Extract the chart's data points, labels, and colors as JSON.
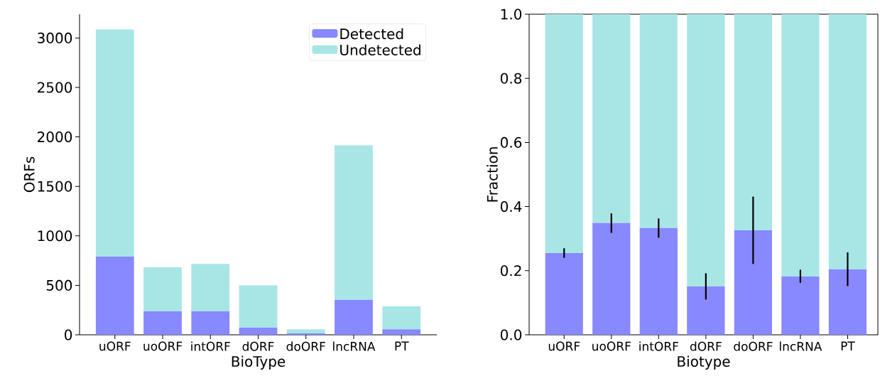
{
  "chart_data": [
    {
      "type": "bar",
      "stacked": true,
      "xlabel": "BioType",
      "ylabel": "ORFs",
      "categories": [
        "uORF",
        "uoORF",
        "intORF",
        "dORF",
        "doORF",
        "lncRNA",
        "PT"
      ],
      "ylim": [
        0,
        3240
      ],
      "yticks": [
        0,
        500,
        1000,
        1500,
        2000,
        2500,
        3000
      ],
      "legend": "top right",
      "series": [
        {
          "name": "Detected",
          "color": "#8888ff",
          "values": [
            790,
            237,
            237,
            72,
            14,
            353,
            56
          ]
        },
        {
          "name": "Undetected",
          "color": "#a8e6e6",
          "values": [
            2295,
            445,
            480,
            428,
            42,
            1561,
            231
          ]
        }
      ]
    },
    {
      "type": "bar",
      "stacked": true,
      "xlabel": "Biotype",
      "ylabel": "Fraction",
      "categories": [
        "uORF",
        "uoORF",
        "intORF",
        "dORF",
        "doORF",
        "lncRNA",
        "PT"
      ],
      "ylim": [
        0,
        1
      ],
      "yticks": [
        {
          "value": 0,
          "label": "0.0"
        },
        0.2,
        0.4,
        0.6,
        0.8,
        {
          "value": 1,
          "label": "1.0"
        }
      ],
      "series": [
        {
          "color": "#8888ff",
          "values": [
            0.255,
            0.349,
            0.333,
            0.151,
            0.326,
            0.182,
            0.204
          ],
          "errors": [
            [
              0.24,
              0.27
            ],
            [
              0.318,
              0.379
            ],
            [
              0.303,
              0.363
            ],
            [
              0.11,
              0.192
            ],
            [
              0.221,
              0.431
            ],
            [
              0.162,
              0.203
            ],
            [
              0.152,
              0.257
            ]
          ]
        },
        {
          "color": "#a8e6e6",
          "values": [
            0.745,
            0.651,
            0.667,
            0.849,
            0.674,
            0.818,
            0.796
          ]
        }
      ]
    }
  ]
}
